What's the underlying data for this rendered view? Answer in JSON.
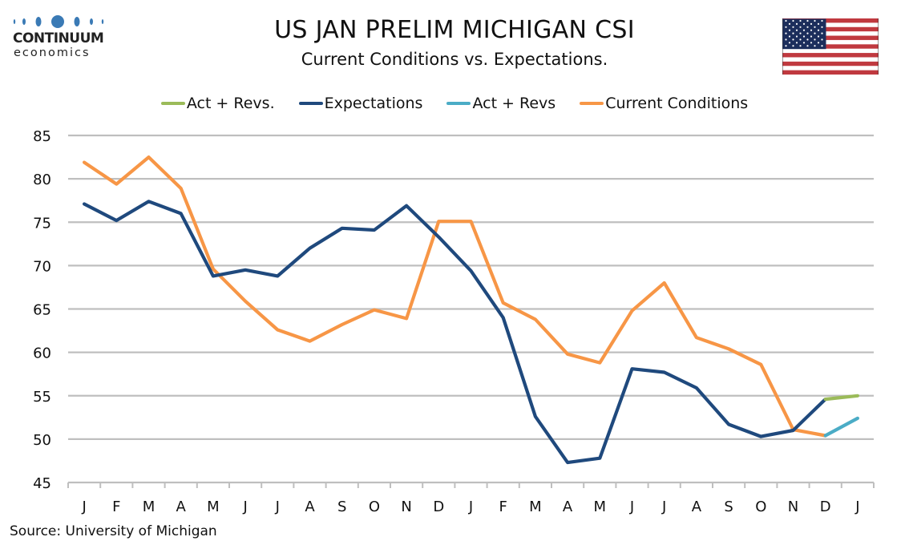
{
  "logo": {
    "brand": "CONTINUUM",
    "sub": "economics",
    "icon": "continuum-dots-logo",
    "color": "#3a7ab5"
  },
  "flag": {
    "icon": "us-flag-icon"
  },
  "chart_data": {
    "type": "line",
    "title": "US JAN PRELIM MICHIGAN CSI",
    "subtitle": "Current Conditions vs. Expectations.",
    "xlabel": "",
    "ylabel": "",
    "ylim": [
      45,
      85
    ],
    "yticks": [
      45,
      50,
      55,
      60,
      65,
      70,
      75,
      80,
      85
    ],
    "grid": true,
    "legend_position": "top-center",
    "categories": [
      "J",
      "F",
      "M",
      "A",
      "M",
      "J",
      "J",
      "A",
      "S",
      "O",
      "N",
      "D",
      "J",
      "F",
      "M",
      "A",
      "M",
      "J",
      "J",
      "A",
      "S",
      "O",
      "N",
      "D",
      "J"
    ],
    "legend": [
      {
        "name": "Act + Revs.",
        "color": "#9bbb59"
      },
      {
        "name": "Expectations",
        "color": "#1f497d"
      },
      {
        "name": "Act + Revs",
        "color": "#4bacc6"
      },
      {
        "name": "Current Conditions",
        "color": "#f79646"
      }
    ],
    "series": [
      {
        "name": "Current Conditions",
        "color": "#f79646",
        "values": [
          81.9,
          79.4,
          82.5,
          78.9,
          69.6,
          65.9,
          62.6,
          61.3,
          63.2,
          64.9,
          63.9,
          75.1,
          75.1,
          65.7,
          63.8,
          59.8,
          58.8,
          64.8,
          68.0,
          61.7,
          60.4,
          58.6,
          51.1,
          50.4,
          null
        ]
      },
      {
        "name": "Expectations",
        "color": "#1f497d",
        "values": [
          77.1,
          75.2,
          77.4,
          76.0,
          68.8,
          69.5,
          68.8,
          72.0,
          74.3,
          74.1,
          76.9,
          73.3,
          69.4,
          64.0,
          52.6,
          47.3,
          47.8,
          58.1,
          57.7,
          55.9,
          51.7,
          50.3,
          51.0,
          54.6,
          null
        ]
      },
      {
        "name": "Act + Revs",
        "color": "#4bacc6",
        "values": [
          null,
          null,
          null,
          null,
          null,
          null,
          null,
          null,
          null,
          null,
          null,
          null,
          null,
          null,
          null,
          null,
          null,
          null,
          null,
          null,
          null,
          null,
          null,
          50.4,
          52.4
        ]
      },
      {
        "name": "Act + Revs.",
        "color": "#9bbb59",
        "values": [
          null,
          null,
          null,
          null,
          null,
          null,
          null,
          null,
          null,
          null,
          null,
          null,
          null,
          null,
          null,
          null,
          null,
          null,
          null,
          null,
          null,
          null,
          null,
          54.6,
          55.0
        ]
      }
    ]
  },
  "source": "Source: University of Michigan"
}
